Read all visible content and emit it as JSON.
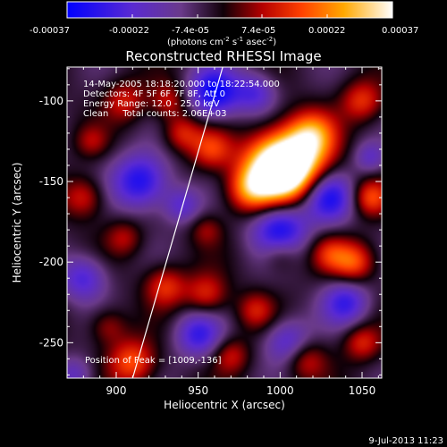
{
  "colorbar": {
    "ticks": [
      "-0.00037",
      "-0.00022",
      "-7.4e-05",
      "7.4e-05",
      "0.00022",
      "0.00037"
    ],
    "units_main": "(photons cm",
    "units_sup1": "-2",
    "units_mid": " s",
    "units_sup2": "-1",
    "units_end": " asec",
    "units_sup3": "-2",
    "units_close": ")"
  },
  "chart_data": {
    "type": "heatmap",
    "title": "Reconstructed RHESSI Image",
    "xlabel": "Heliocentric X (arcsec)",
    "ylabel": "Heliocentric Y (arcsec)",
    "xlim": [
      870,
      1062
    ],
    "ylim": [
      -272,
      -79
    ],
    "x_ticks": [
      900,
      950,
      1000,
      1050
    ],
    "y_ticks": [
      -100,
      -150,
      -200,
      -250
    ],
    "clim": [
      -0.00037,
      0.00037
    ],
    "colormap": "RHESSI standard (blue-purple-black-red-orange-yellow-white)",
    "limb_line": [
      [
        965,
        -79
      ],
      [
        910,
        -272
      ]
    ],
    "peak": [
      1009,
      -136
    ],
    "blobs": [
      [
        1010,
        -135,
        0.00037,
        14
      ],
      [
        1002,
        -148,
        0.0003,
        12
      ],
      [
        992,
        -138,
        0.00022,
        13
      ],
      [
        982,
        -155,
        0.00025,
        10
      ],
      [
        1020,
        -120,
        0.0002,
        10
      ],
      [
        958,
        -130,
        0.00018,
        9
      ],
      [
        940,
        -120,
        0.00016,
        8
      ],
      [
        905,
        -100,
        0.00015,
        9
      ],
      [
        932,
        -100,
        0.00014,
        8
      ],
      [
        880,
        -160,
        0.00016,
        9
      ],
      [
        905,
        -185,
        0.00012,
        8
      ],
      [
        885,
        -125,
        0.0001,
        7
      ],
      [
        930,
        -215,
        0.00018,
        9
      ],
      [
        955,
        -220,
        0.00017,
        9
      ],
      [
        985,
        -230,
        0.00014,
        8
      ],
      [
        1015,
        -260,
        0.00016,
        9
      ],
      [
        1050,
        -250,
        0.00016,
        8
      ],
      [
        1045,
        -200,
        0.00022,
        9
      ],
      [
        1055,
        -160,
        0.0002,
        8
      ],
      [
        1050,
        -100,
        0.00018,
        9
      ],
      [
        1030,
        -195,
        0.00014,
        8
      ],
      [
        910,
        -262,
        0.00022,
        10
      ],
      [
        895,
        -240,
        0.00012,
        8
      ],
      [
        970,
        -258,
        0.00014,
        8
      ],
      [
        1000,
        -195,
        0.00012,
        8
      ],
      [
        955,
        -180,
        0.0001,
        7
      ],
      [
        960,
        -95,
        -0.0003,
        11
      ],
      [
        915,
        -150,
        -0.00028,
        12
      ],
      [
        1030,
        -160,
        -0.00026,
        11
      ],
      [
        1000,
        -180,
        -0.00028,
        12
      ],
      [
        950,
        -245,
        -0.00022,
        10
      ],
      [
        880,
        -210,
        -0.0002,
        10
      ],
      [
        1040,
        -225,
        -0.00022,
        10
      ],
      [
        1005,
        -250,
        -0.0002,
        10
      ],
      [
        985,
        -95,
        -0.00018,
        9
      ],
      [
        1055,
        -135,
        -0.00014,
        7
      ],
      [
        875,
        -270,
        -0.00014,
        8
      ],
      [
        940,
        -165,
        -0.00016,
        8
      ]
    ]
  },
  "info": {
    "time": "14-May-2005 18:18:20.000 to 18:22:54.000",
    "detectors": "Detectors: 4F 5F 6F 7F 8F, Att 0",
    "energy": "Energy Range: 12.0 - 25.0 keV",
    "clean": "Clean     Total counts: 2.06E+03",
    "peak_label": "Position of Peak = [1009,-136]"
  },
  "footer": {
    "date": "9-Jul-2013 11:23"
  }
}
